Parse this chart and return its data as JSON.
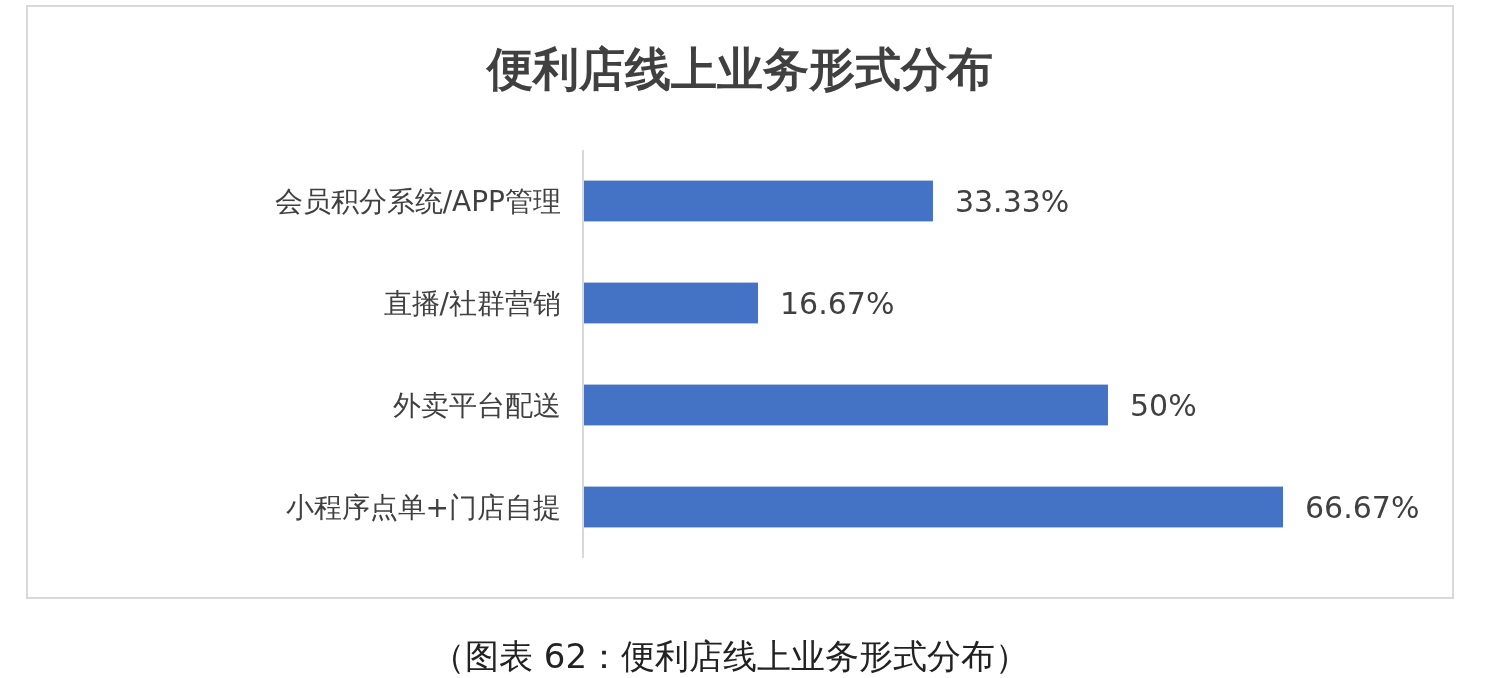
{
  "chart_data": {
    "type": "bar",
    "orientation": "horizontal",
    "title": "便利店线上业务形式分布",
    "categories": [
      "会员积分系统/APP管理",
      "直播/社群营销",
      "外卖平台配送",
      "小程序点单+门店自提"
    ],
    "values": [
      33.33,
      16.67,
      50,
      66.67
    ],
    "color": "#4472c4",
    "data_labels": true,
    "value_labels": [
      "33.33%",
      "16.67%",
      "50%",
      "66.67%"
    ],
    "annotations": [
      "（图表 62：便利店线上业务形式分布）"
    ]
  }
}
